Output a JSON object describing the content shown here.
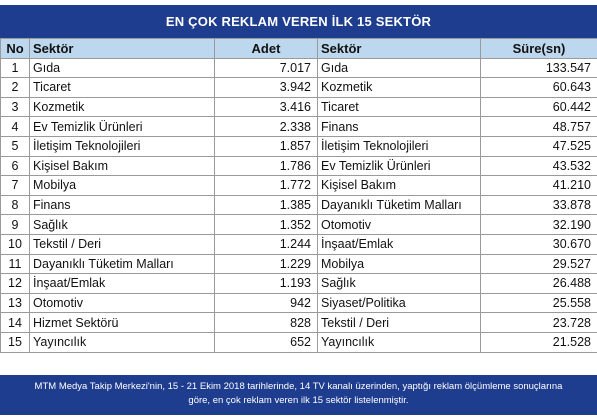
{
  "title": "EN ÇOK REKLAM VEREN İLK 15 SEKTÖR",
  "headers": {
    "no": "No",
    "sektor1": "Sektör",
    "adet": "Adet",
    "sektor2": "Sektör",
    "sure": "Süre(sn)"
  },
  "rows": [
    {
      "no": "1",
      "sektor_adet": "Gıda",
      "adet": "7.017",
      "sektor_sure": "Gıda",
      "sure": "133.547"
    },
    {
      "no": "2",
      "sektor_adet": "Ticaret",
      "adet": "3.942",
      "sektor_sure": "Kozmetik",
      "sure": "60.643"
    },
    {
      "no": "3",
      "sektor_adet": "Kozmetik",
      "adet": "3.416",
      "sektor_sure": "Ticaret",
      "sure": "60.442"
    },
    {
      "no": "4",
      "sektor_adet": "Ev Temizlik Ürünleri",
      "adet": "2.338",
      "sektor_sure": "Finans",
      "sure": "48.757"
    },
    {
      "no": "5",
      "sektor_adet": "İletişim Teknolojileri",
      "adet": "1.857",
      "sektor_sure": "İletişim Teknolojileri",
      "sure": "47.525"
    },
    {
      "no": "6",
      "sektor_adet": "Kişisel Bakım",
      "adet": "1.786",
      "sektor_sure": "Ev Temizlik Ürünleri",
      "sure": "43.532"
    },
    {
      "no": "7",
      "sektor_adet": "Mobilya",
      "adet": "1.772",
      "sektor_sure": "Kişisel Bakım",
      "sure": "41.210"
    },
    {
      "no": "8",
      "sektor_adet": "Finans",
      "adet": "1.385",
      "sektor_sure": "Dayanıklı Tüketim Malları",
      "sure": "33.878"
    },
    {
      "no": "9",
      "sektor_adet": "Sağlık",
      "adet": "1.352",
      "sektor_sure": "Otomotiv",
      "sure": "32.190"
    },
    {
      "no": "10",
      "sektor_adet": "Tekstil / Deri",
      "adet": "1.244",
      "sektor_sure": "İnşaat/Emlak",
      "sure": "30.670"
    },
    {
      "no": "11",
      "sektor_adet": "Dayanıklı Tüketim Malları",
      "adet": "1.229",
      "sektor_sure": "Mobilya",
      "sure": "29.527"
    },
    {
      "no": "12",
      "sektor_adet": "İnşaat/Emlak",
      "adet": "1.193",
      "sektor_sure": "Sağlık",
      "sure": "26.488"
    },
    {
      "no": "13",
      "sektor_adet": "Otomotiv",
      "adet": "942",
      "sektor_sure": "Siyaset/Politika",
      "sure": "25.558"
    },
    {
      "no": "14",
      "sektor_adet": "Hizmet Sektörü",
      "adet": "828",
      "sektor_sure": "Tekstil / Deri",
      "sure": "23.728"
    },
    {
      "no": "15",
      "sektor_adet": "Yayıncılık",
      "adet": "652",
      "sektor_sure": "Yayıncılık",
      "sure": "21.528"
    }
  ],
  "footer": {
    "line1": "MTM Medya Takip Merkezi'nin, 15 - 21 Ekim 2018 tarihlerinde, 14 TV kanalı üzerinden,  yaptığı reklam ölçümleme sonuçlarına",
    "line2": "göre, en çok reklam veren ilk 15 sektör  listelenmiştir."
  },
  "colors": {
    "title_bg": "#1e3d8f",
    "header_bg": "#bdd7ee",
    "border": "#9a9a9a"
  }
}
